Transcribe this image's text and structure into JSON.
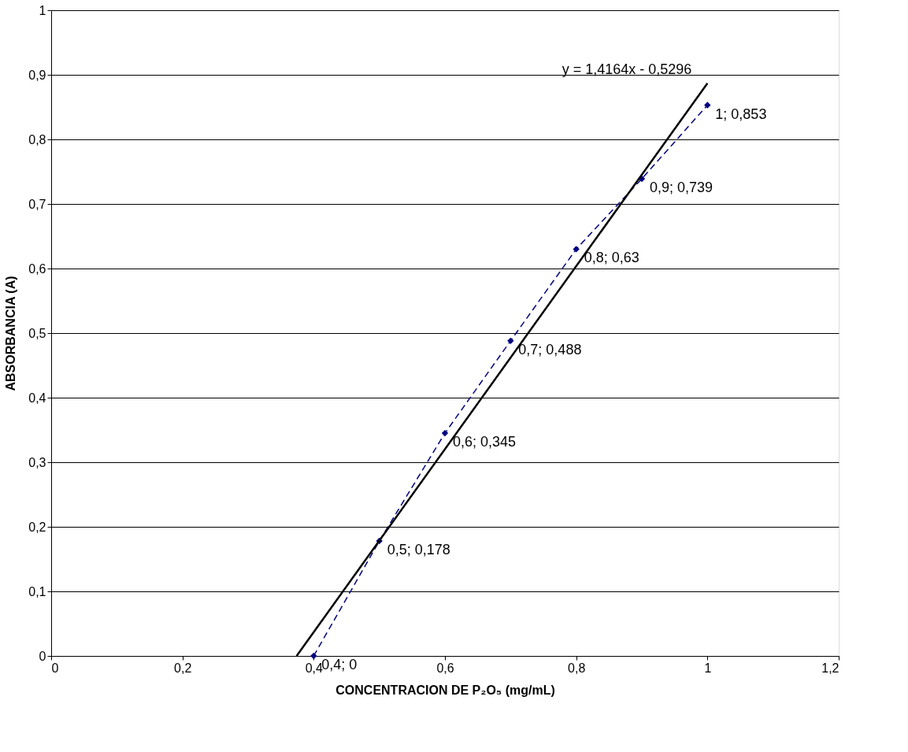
{
  "chart_data": {
    "type": "line",
    "xlabel": "CONCENTRACION DE P₂O₅ (mg/mL)",
    "ylabel": "ABSORBANCIA (A)",
    "xlim": [
      0,
      1.2
    ],
    "ylim": [
      0,
      1
    ],
    "xticks": [
      0,
      {
        "value": 0.2,
        "label": "0,2"
      },
      {
        "value": 0.4,
        "label": "0,4"
      },
      {
        "value": 0.6,
        "label": "0,6"
      },
      {
        "value": 0.8,
        "label": "0,8"
      },
      1,
      {
        "value": 1.2,
        "label": "1,2"
      }
    ],
    "yticks": [
      0,
      {
        "value": 0.1,
        "label": "0,1"
      },
      {
        "value": 0.2,
        "label": "0,2"
      },
      {
        "value": 0.3,
        "label": "0,3"
      },
      {
        "value": 0.4,
        "label": "0,4"
      },
      {
        "value": 0.5,
        "label": "0,5"
      },
      {
        "value": 0.6,
        "label": "0,6"
      },
      {
        "value": 0.7,
        "label": "0,7"
      },
      {
        "value": 0.8,
        "label": "0,8"
      },
      {
        "value": 0.9,
        "label": "0,9"
      },
      1
    ],
    "grid": "y",
    "series": [
      {
        "color": "#000080",
        "marker": "diamond",
        "line_style": "dashed",
        "x": [
          0.4,
          0.5,
          0.6,
          0.7,
          0.8,
          0.9,
          1.0
        ],
        "values": [
          0,
          0.178,
          0.345,
          0.488,
          0.63,
          0.739,
          0.853
        ],
        "value_labels": [
          "0,4; 0",
          "0,5; 0,178",
          "0,6; 0,345",
          "0,7; 0,488",
          "0,8; 0,63",
          "0,9; 0,739",
          "1; 0,853"
        ]
      },
      {
        "color": "#000000",
        "marker": "none",
        "line_style": "solid",
        "x": [
          0.374,
          1.0
        ],
        "values": [
          0,
          0.887
        ]
      }
    ],
    "annotations": [
      {
        "text": "y = 1,4164x - 0,5296",
        "x": 1.0,
        "y": 0.887
      }
    ]
  }
}
